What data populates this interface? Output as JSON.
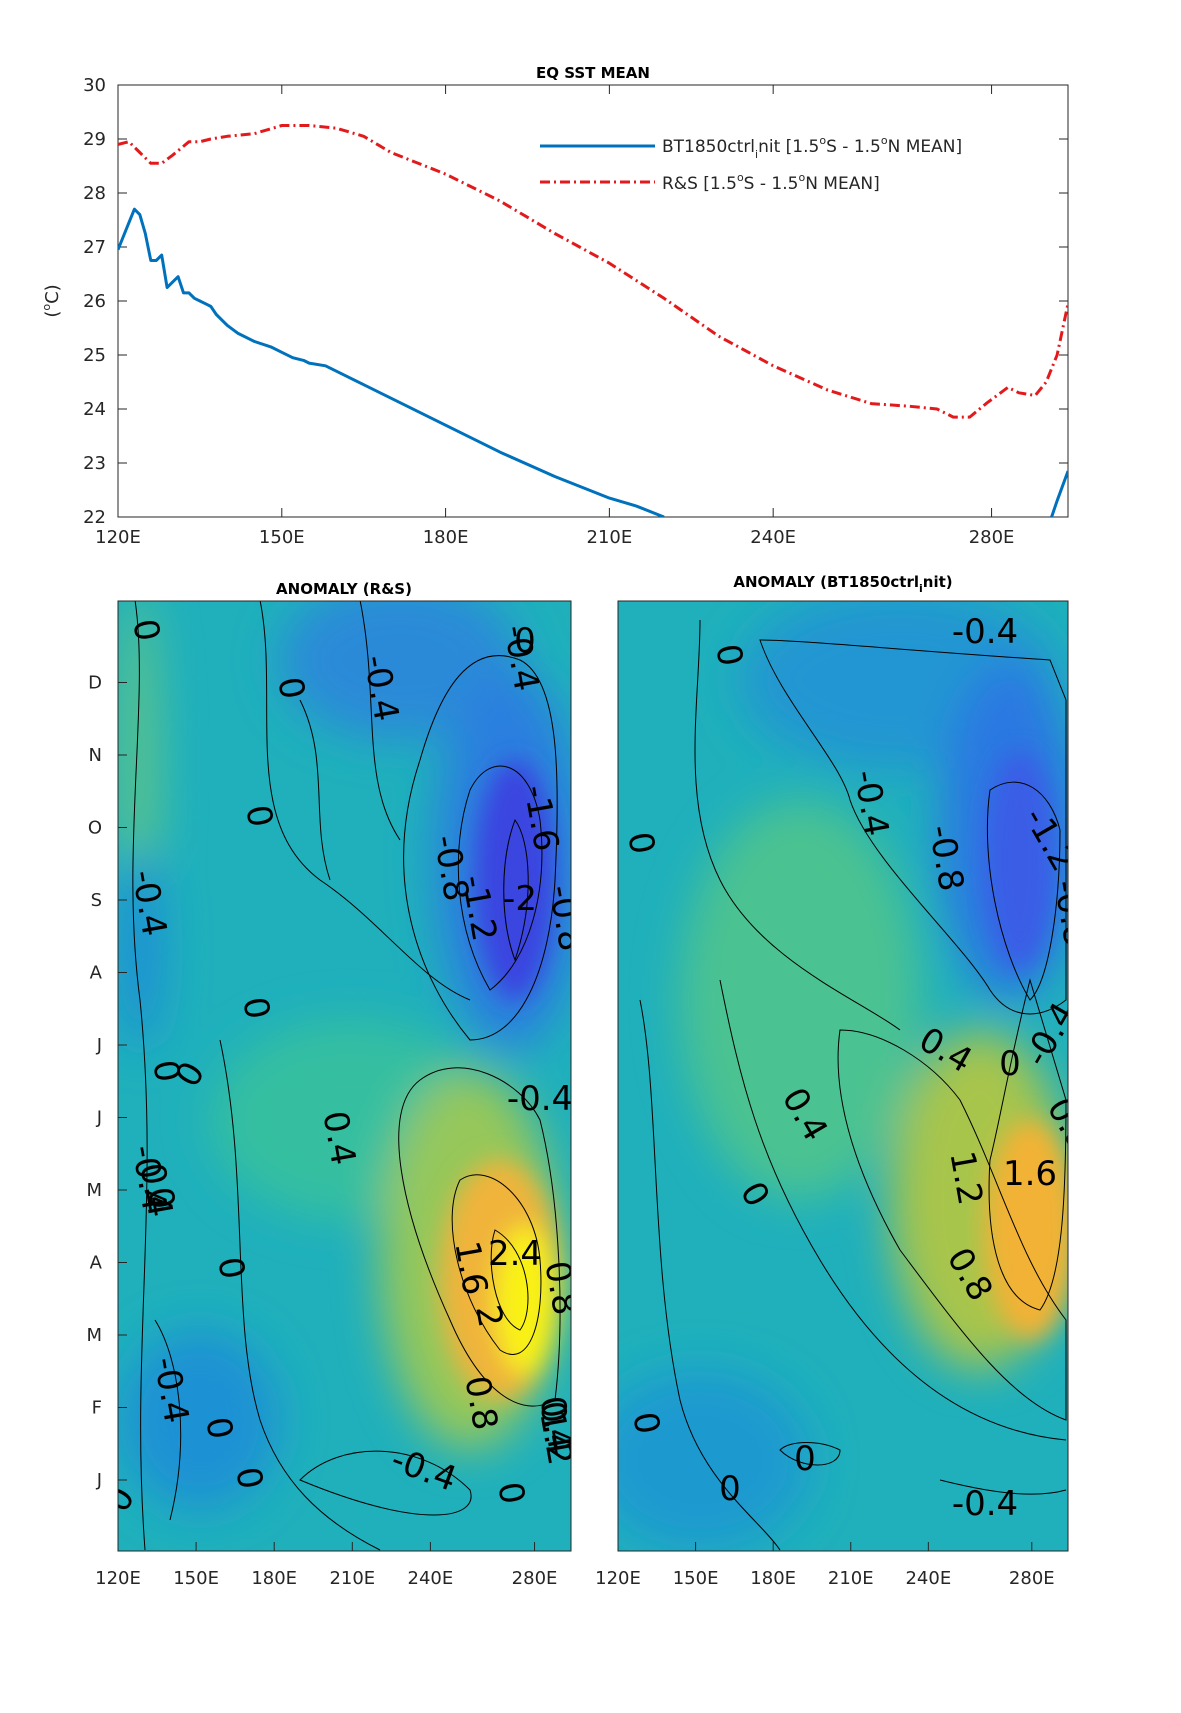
{
  "chart_data": [
    {
      "type": "line",
      "title": "EQ SST MEAN",
      "xlabel": "",
      "ylabel": "(oC)",
      "xlim": [
        120,
        294
      ],
      "ylim": [
        22,
        30
      ],
      "xticks": [
        120,
        150,
        180,
        210,
        240,
        280
      ],
      "xtick_labels": [
        "120E",
        "150E",
        "180E",
        "210E",
        "240E",
        "280E"
      ],
      "yticks": [
        22,
        23,
        24,
        25,
        26,
        27,
        28,
        29,
        30
      ],
      "ytick_labels": [
        "22",
        "23",
        "24",
        "25",
        "26",
        "27",
        "28",
        "29",
        "30"
      ],
      "legend": "top-right",
      "grid": false,
      "series": [
        {
          "name": "BT1850ctrl_init [1.5oS - 1.5oN MEAN]",
          "color": "#0072BD",
          "style": "solid",
          "x": [
            120,
            122,
            123,
            124,
            125,
            126,
            127,
            128,
            129,
            130,
            131,
            132,
            133,
            134,
            135,
            136,
            137,
            138,
            140,
            142,
            145,
            148,
            150,
            152,
            154,
            155,
            158,
            160,
            165,
            170,
            180,
            190,
            200,
            210,
            215,
            220,
            291,
            292,
            294
          ],
          "y": [
            26.95,
            27.45,
            27.7,
            27.6,
            27.25,
            26.75,
            26.75,
            26.85,
            26.25,
            26.35,
            26.45,
            26.15,
            26.15,
            26.05,
            26.0,
            25.95,
            25.9,
            25.75,
            25.55,
            25.4,
            25.25,
            25.15,
            25.05,
            24.95,
            24.9,
            24.85,
            24.8,
            24.7,
            24.45,
            24.2,
            23.7,
            23.2,
            22.75,
            22.35,
            22.2,
            22.0,
            22.0,
            22.3,
            22.85
          ]
        },
        {
          "name": "R&S [1.5oS - 1.5oN MEAN]",
          "color": "#E31A1C",
          "style": "dash-dot",
          "x": [
            120,
            122,
            124,
            126,
            128,
            130,
            133,
            135,
            137,
            140,
            145,
            150,
            155,
            160,
            165,
            170,
            180,
            190,
            200,
            210,
            220,
            230,
            240,
            250,
            258,
            265,
            270,
            273,
            276,
            279,
            283,
            285,
            288,
            290,
            292,
            294
          ],
          "y": [
            28.9,
            28.95,
            28.75,
            28.55,
            28.55,
            28.7,
            28.95,
            28.95,
            29.0,
            29.05,
            29.1,
            29.25,
            29.25,
            29.2,
            29.05,
            28.75,
            28.35,
            27.85,
            27.25,
            26.7,
            26.05,
            25.35,
            24.8,
            24.35,
            24.1,
            24.05,
            24.0,
            23.85,
            23.85,
            24.1,
            24.4,
            24.3,
            24.25,
            24.5,
            25.0,
            25.95
          ]
        }
      ]
    },
    {
      "type": "heatmap",
      "title": "ANOMALY (R&S)",
      "xlim": [
        120,
        294
      ],
      "xticks": [
        120,
        150,
        180,
        210,
        240,
        280
      ],
      "xtick_labels": [
        "120E",
        "150E",
        "180E",
        "210E",
        "240E",
        "280E"
      ],
      "ytick_labels": [
        "J",
        "F",
        "M",
        "A",
        "M",
        "J",
        "J",
        "A",
        "S",
        "O",
        "N",
        "D"
      ],
      "contour_labels": [
        "0",
        "-0.4",
        "0",
        "-0.4",
        "-0.4",
        "0",
        "0",
        "-1.6",
        "-0.8",
        "-1.2",
        "-2",
        "-0.8",
        "-0.4",
        "0",
        "0",
        "0",
        "0",
        "0",
        "-0.4",
        "0.4",
        "0.4",
        "1.6",
        "2.4",
        "0.8",
        "2",
        "1.2",
        "0.8",
        "-0.4",
        "0",
        "-0.4",
        "0",
        "0",
        "0",
        "0.4",
        "0.4"
      ]
    },
    {
      "type": "heatmap",
      "title": "ANOMALY (BT1850ctrl_init)",
      "xlim": [
        120,
        294
      ],
      "xticks": [
        120,
        150,
        180,
        210,
        240,
        280
      ],
      "xtick_labels": [
        "120E",
        "150E",
        "180E",
        "210E",
        "240E",
        "280E"
      ],
      "contour_labels": [
        "-0.4",
        "0",
        "-0.4",
        "-0.8",
        "-1.2",
        "-0.8",
        "0",
        "0.4",
        "0",
        "-0.4",
        "0.4",
        "0.8",
        "1.2",
        "1.6",
        "0",
        "0.8",
        "0.4",
        "0",
        "0",
        "0",
        "-0.4"
      ]
    }
  ],
  "legend_entries": [
    {
      "pre": "BT1850ctrl",
      "sub": "i",
      "post": "nit [1.5",
      "sup1": "o",
      "mid": "S - 1.5",
      "sup2": "o",
      "end": "N MEAN]"
    },
    {
      "pre": "R&S [1.5",
      "sup1": "o",
      "mid": "S - 1.5",
      "sup2": "o",
      "end": "N MEAN]"
    }
  ],
  "colors": {
    "low": "#3E26A8",
    "mid": "#13BEB8",
    "high": "#F9FB0E"
  }
}
